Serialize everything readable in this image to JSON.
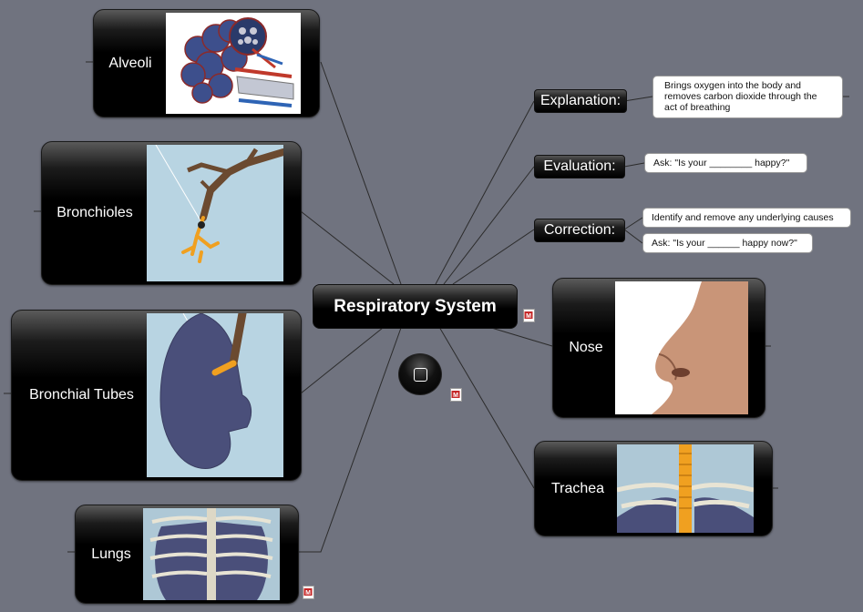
{
  "central": {
    "title": "Respiratory System"
  },
  "branches": {
    "explanation": {
      "label": "Explanation:",
      "note": "Brings oxygen into the body and removes carbon dioxide through the act of breathing"
    },
    "evaluation": {
      "label": "Evaluation:",
      "note": "Ask: \"Is your ________ happy?\""
    },
    "correction": {
      "label": "Correction:",
      "notes": [
        "Identify and remove any underlying causes",
        "Ask: \"Is your ______ happy now?\""
      ]
    }
  },
  "topics": {
    "alveoli": {
      "label": "Alveoli"
    },
    "bronchioles": {
      "label": "Bronchioles"
    },
    "bronchial_tubes": {
      "label": "Bronchial Tubes"
    },
    "lungs": {
      "label": "Lungs"
    },
    "nose": {
      "label": "Nose"
    },
    "trachea": {
      "label": "Trachea"
    }
  },
  "colors": {
    "background": "#70737f",
    "node": "#000000",
    "line": "#2b2b2b"
  }
}
